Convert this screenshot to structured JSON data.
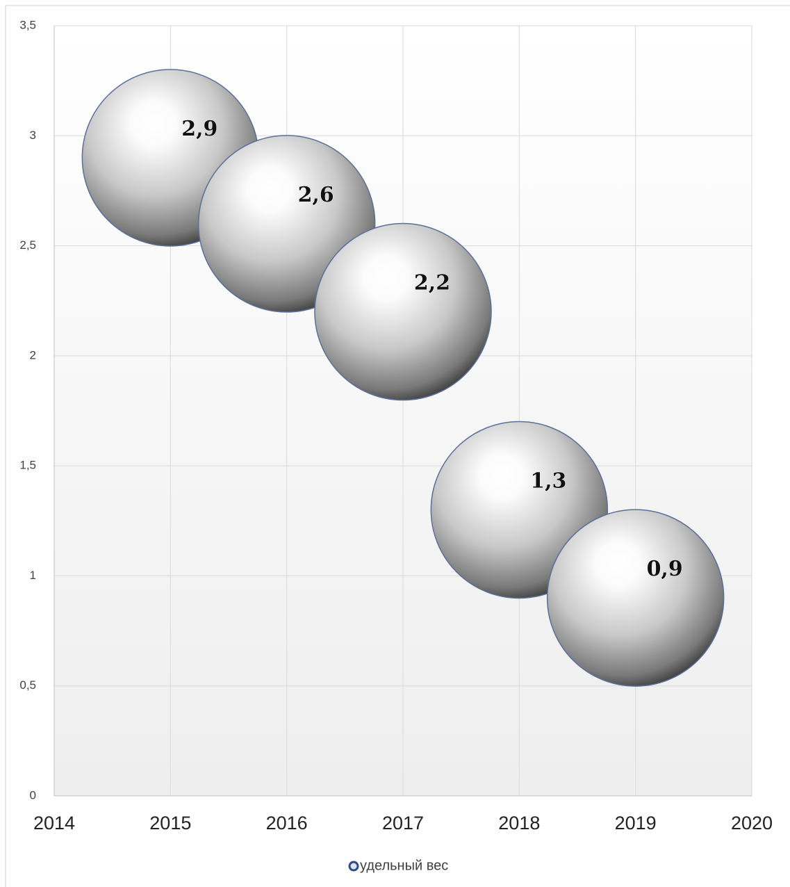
{
  "chart_data": {
    "type": "scatter",
    "x": [
      2015,
      2016,
      2017,
      2018,
      2019
    ],
    "series": [
      {
        "name": "удельный вес",
        "color": "#a6a6a6",
        "values": [
          2.9,
          2.6,
          2.2,
          1.3,
          0.9
        ],
        "value_labels": [
          "2,9",
          "2,6",
          "2,2",
          "1,3",
          "0,9"
        ]
      }
    ],
    "xlim": [
      2014,
      2020
    ],
    "xticks": [
      2014,
      2015,
      2016,
      2017,
      2018,
      2019,
      2020
    ],
    "ylim": [
      0,
      3.5
    ],
    "yticks": [
      0,
      {
        "value": 0.5,
        "label": "0,5"
      },
      1,
      {
        "value": 1.5,
        "label": "1,5"
      },
      2,
      {
        "value": 2.5,
        "label": "2,5"
      },
      3,
      {
        "value": 3.5,
        "label": "3,5"
      }
    ],
    "grid": true,
    "legend": "bottom"
  }
}
